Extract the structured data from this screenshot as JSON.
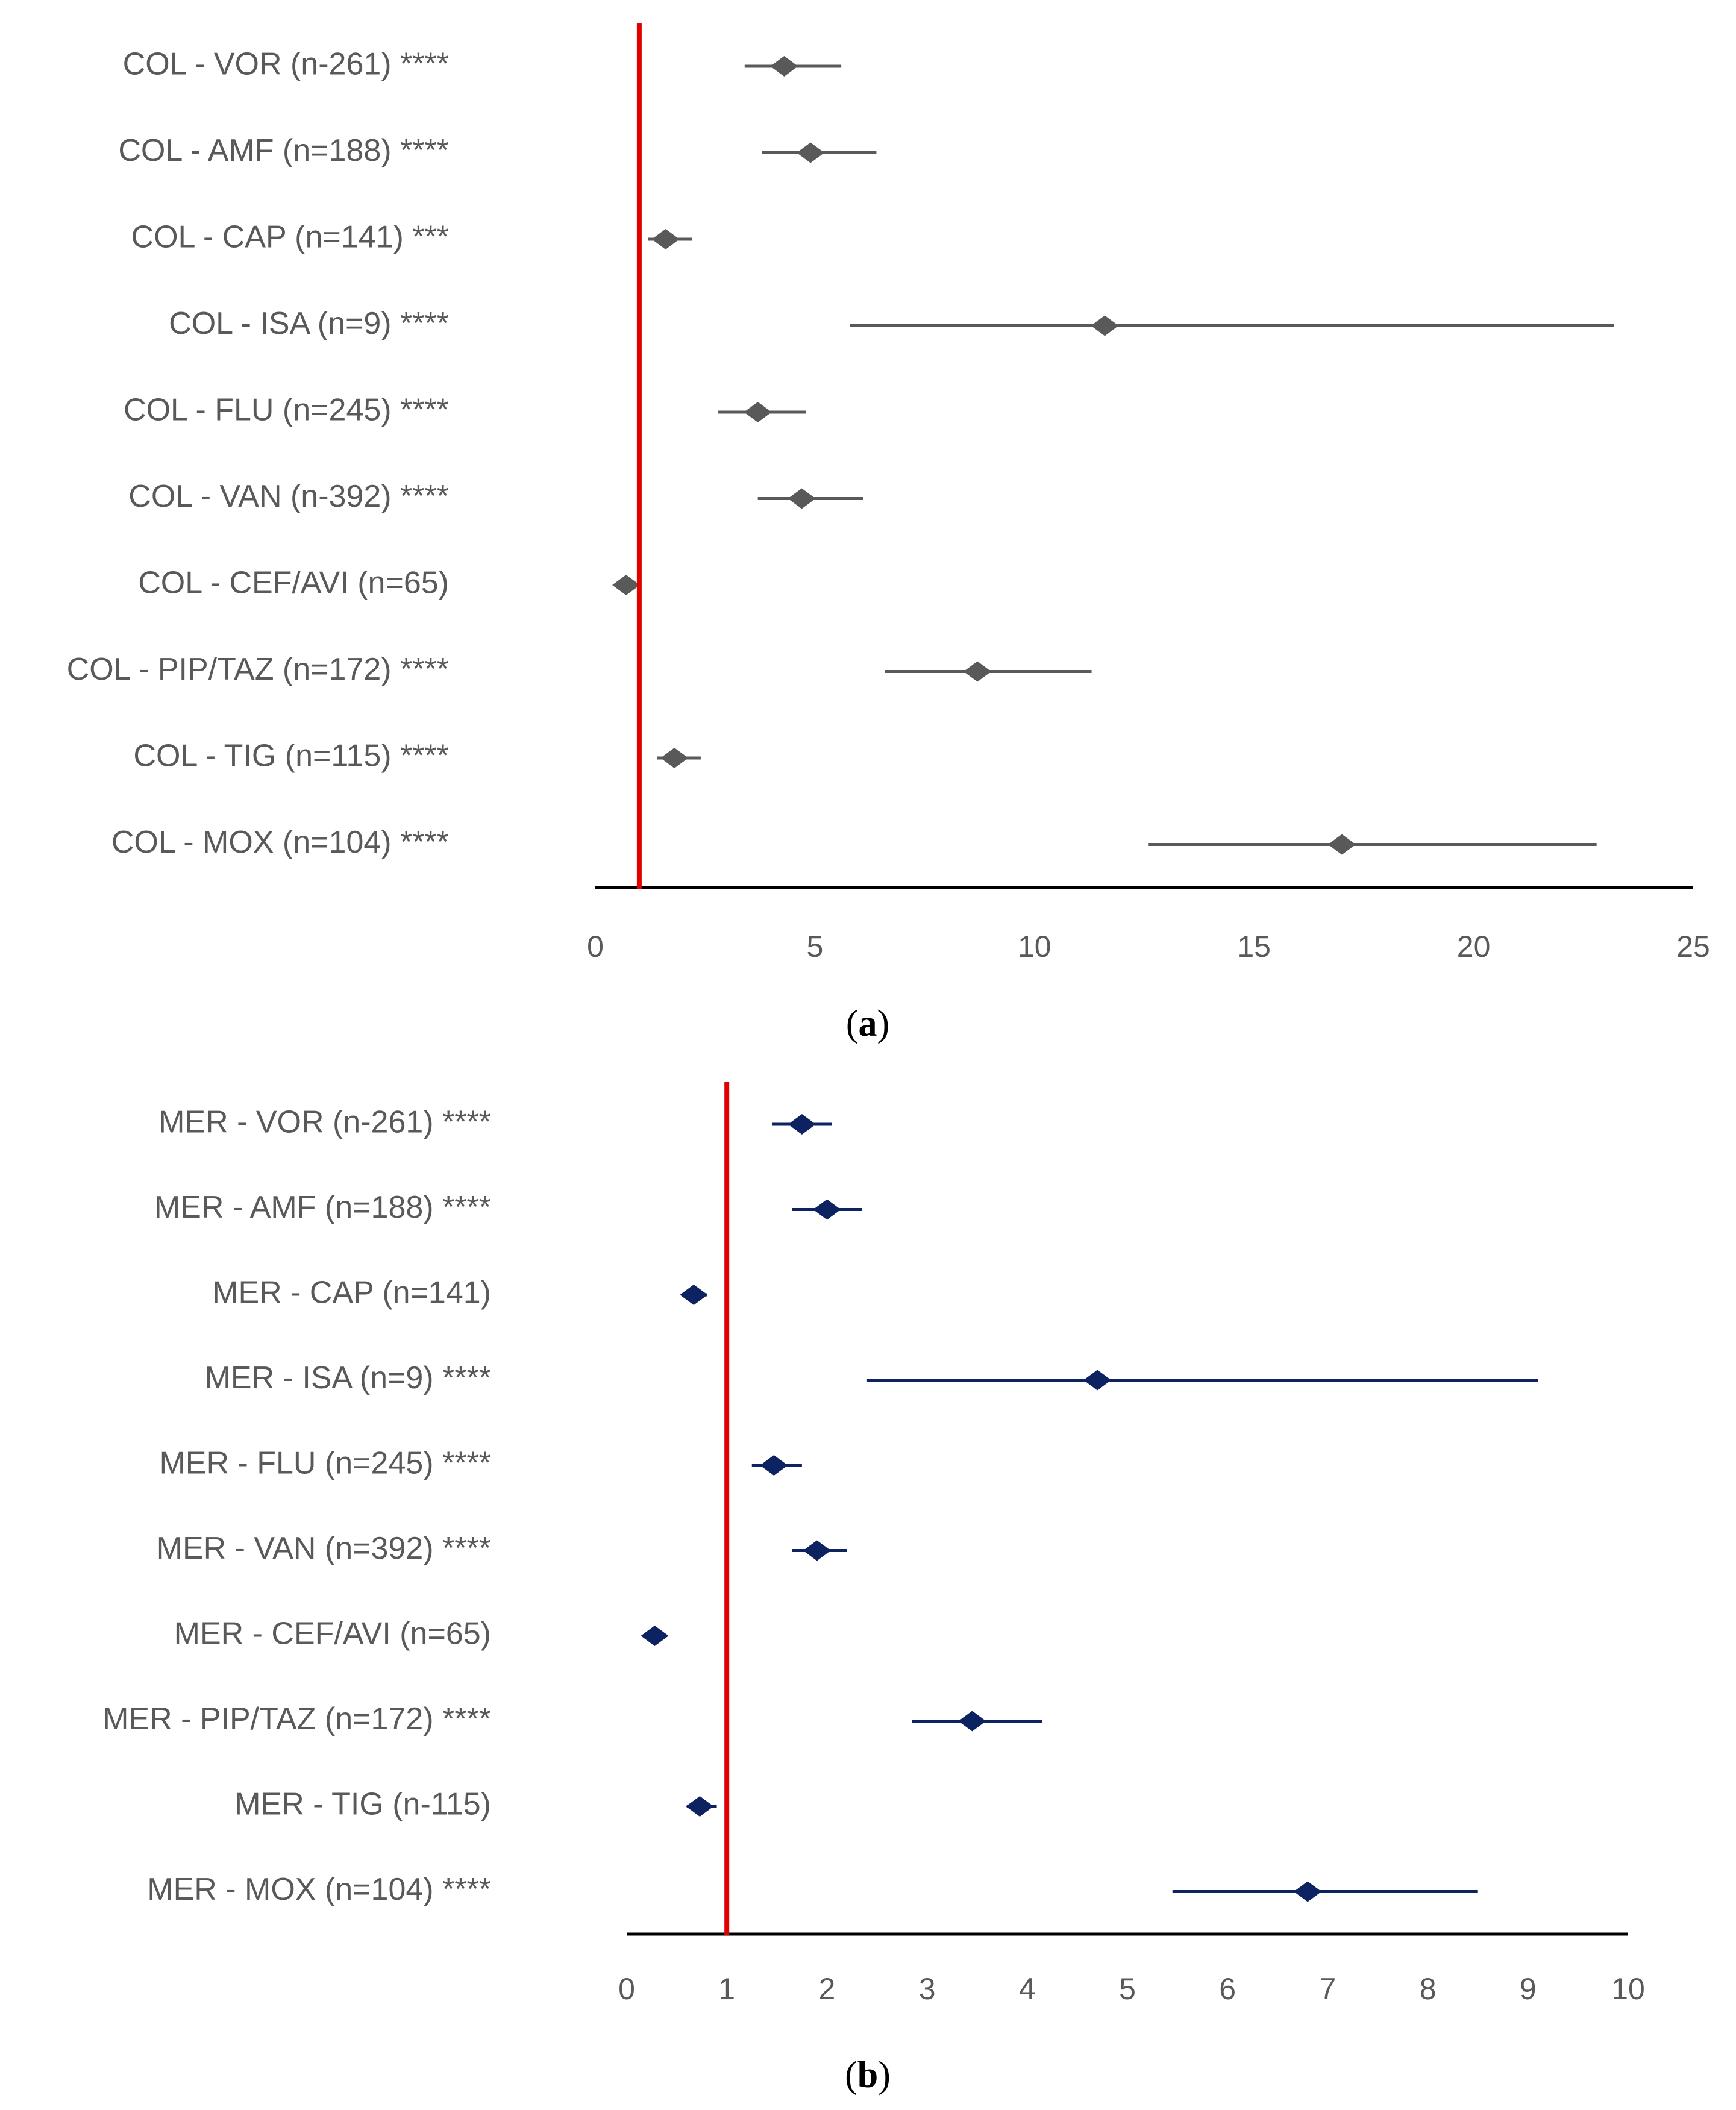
{
  "chart_data": [
    {
      "type": "forest",
      "panel_label": "a",
      "xlim": [
        0,
        25
      ],
      "xticks": [
        0,
        5,
        10,
        15,
        20,
        25
      ],
      "reference_line": 1,
      "colors": {
        "marker": "#595959",
        "reference": "#e00000",
        "axis": "#000000"
      },
      "rows": [
        {
          "label": "COL - VOR (n-261) ****",
          "value": 4.3,
          "low": 3.4,
          "high": 5.6
        },
        {
          "label": "COL - AMF (n=188) ****",
          "value": 4.9,
          "low": 3.8,
          "high": 6.4
        },
        {
          "label": "COL - CAP (n=141) ***",
          "value": 1.6,
          "low": 1.2,
          "high": 2.2
        },
        {
          "label": "COL - ISA (n=9) ****",
          "value": 11.6,
          "low": 5.8,
          "high": 23.2
        },
        {
          "label": "COL - FLU (n=245) ****",
          "value": 3.7,
          "low": 2.8,
          "high": 4.8
        },
        {
          "label": "COL - VAN (n-392) ****",
          "value": 4.7,
          "low": 3.7,
          "high": 6.1
        },
        {
          "label": "COL - CEF/AVI (n=65)",
          "value": 0.7,
          "low": 0.5,
          "high": 0.9
        },
        {
          "label": "COL - PIP/TAZ (n=172) ****",
          "value": 8.7,
          "low": 6.6,
          "high": 11.3
        },
        {
          "label": "COL - TIG (n=115) ****",
          "value": 1.8,
          "low": 1.4,
          "high": 2.4
        },
        {
          "label": "COL - MOX (n=104) ****",
          "value": 17.0,
          "low": 12.6,
          "high": 22.8
        }
      ]
    },
    {
      "type": "forest",
      "panel_label": "b",
      "xlim": [
        0,
        10
      ],
      "xticks": [
        0,
        1,
        2,
        3,
        4,
        5,
        6,
        7,
        8,
        9,
        10
      ],
      "reference_line": 1,
      "colors": {
        "marker": "#0d2260",
        "reference": "#e00000",
        "axis": "#000000"
      },
      "rows": [
        {
          "label": "MER - VOR (n-261) ****",
          "value": 1.75,
          "low": 1.45,
          "high": 2.05
        },
        {
          "label": "MER - AMF (n=188) ****",
          "value": 2.0,
          "low": 1.65,
          "high": 2.35
        },
        {
          "label": "MER - CAP (n=141)",
          "value": 0.67,
          "low": 0.55,
          "high": 0.8
        },
        {
          "label": "MER - ISA (n=9) ****",
          "value": 4.7,
          "low": 2.4,
          "high": 9.1
        },
        {
          "label": "MER - FLU (n=245) ****",
          "value": 1.47,
          "low": 1.25,
          "high": 1.75
        },
        {
          "label": "MER - VAN (n=392) ****",
          "value": 1.9,
          "low": 1.65,
          "high": 2.2
        },
        {
          "label": "MER - CEF/AVI (n=65)",
          "value": 0.28,
          "low": 0.2,
          "high": 0.4
        },
        {
          "label": "MER - PIP/TAZ (n=172) ****",
          "value": 3.45,
          "low": 2.85,
          "high": 4.15
        },
        {
          "label": "MER - TIG (n-115)",
          "value": 0.73,
          "low": 0.6,
          "high": 0.9
        },
        {
          "label": "MER - MOX (n=104) ****",
          "value": 6.8,
          "low": 5.45,
          "high": 8.5
        }
      ]
    }
  ]
}
